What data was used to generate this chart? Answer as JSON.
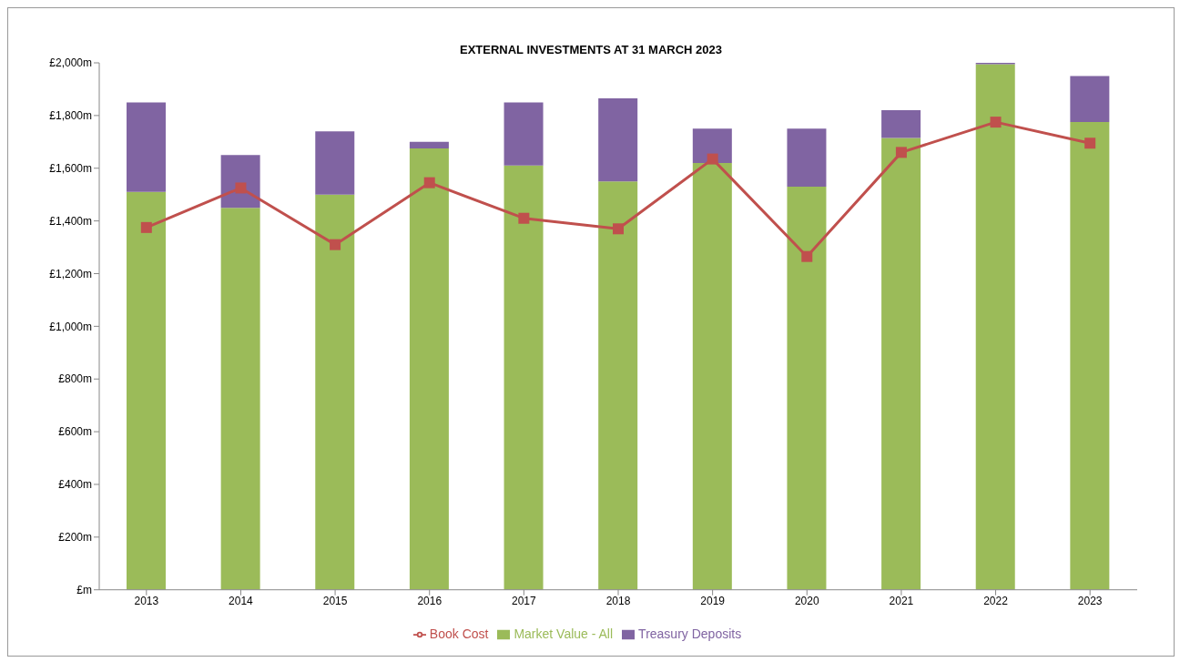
{
  "chart_data": {
    "type": "bar",
    "title": "EXTERNAL INVESTMENTS AT 31 MARCH 2023",
    "categories": [
      "2013",
      "2014",
      "2015",
      "2016",
      "2017",
      "2018",
      "2019",
      "2020",
      "2021",
      "2022",
      "2023"
    ],
    "series": [
      {
        "name": "Market Value - All",
        "color": "#9bbb59",
        "values": [
          1510,
          1450,
          1500,
          1675,
          1610,
          1550,
          1620,
          1530,
          1715,
          1995,
          1775
        ]
      },
      {
        "name": "Treasury Deposits",
        "color": "#8064a2",
        "values": [
          340,
          200,
          240,
          25,
          240,
          315,
          130,
          220,
          105,
          5,
          175
        ]
      },
      {
        "name": "Book Cost",
        "type": "line",
        "color": "#c0504d",
        "values": [
          1375,
          1525,
          1310,
          1545,
          1410,
          1370,
          1635,
          1265,
          1660,
          1775,
          1695
        ]
      }
    ],
    "stacked": true,
    "ylim": [
      0,
      2000
    ],
    "yticks": [
      {
        "value": 0,
        "label": "£m"
      },
      {
        "value": 200,
        "label": "£200m"
      },
      {
        "value": 400,
        "label": "£400m"
      },
      {
        "value": 600,
        "label": "£600m"
      },
      {
        "value": 800,
        "label": "£800m"
      },
      {
        "value": 1000,
        "label": "£1,000m"
      },
      {
        "value": 1200,
        "label": "£1,200m"
      },
      {
        "value": 1400,
        "label": "£1,400m"
      },
      {
        "value": 1600,
        "label": "£1,600m"
      },
      {
        "value": 1800,
        "label": "£1,800m"
      },
      {
        "value": 2000,
        "label": "£2,000m"
      }
    ],
    "grid": false,
    "legend": "bottom",
    "marker": "square",
    "line_style": "solid"
  }
}
